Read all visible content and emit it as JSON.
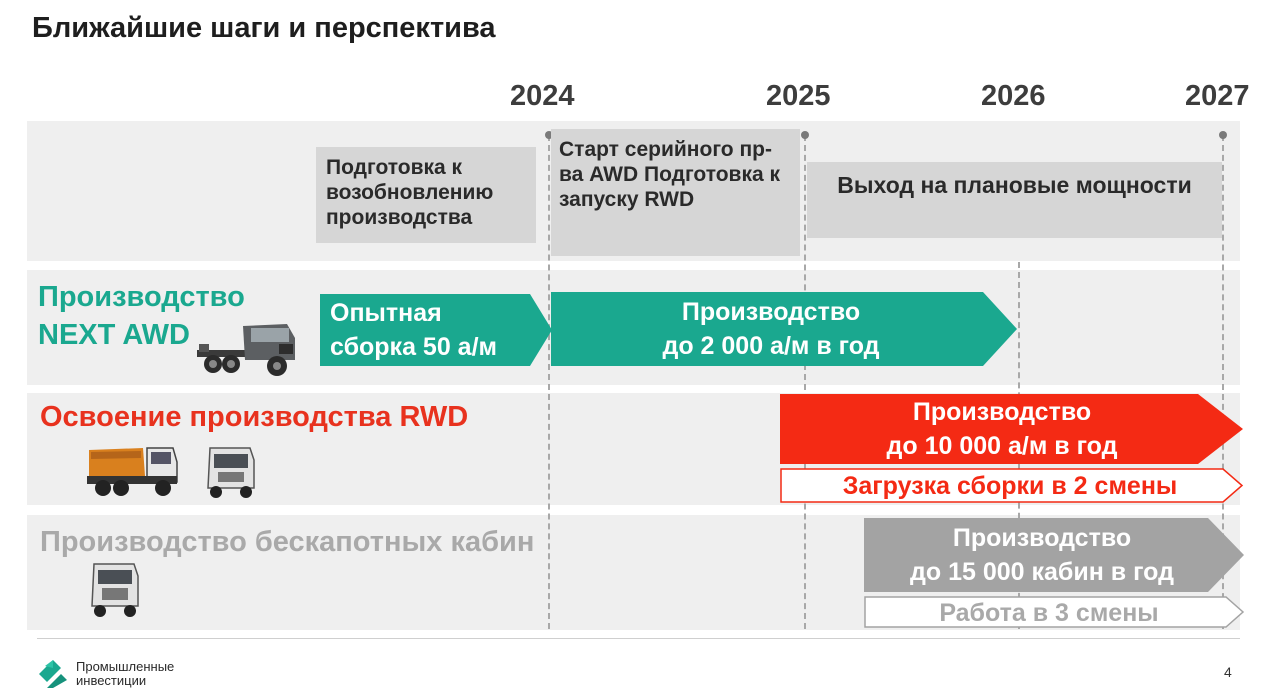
{
  "slide": {
    "title": "Ближайшие шаги и перспектива",
    "page_number": "4"
  },
  "years": [
    "2024",
    "2025",
    "2026",
    "2027"
  ],
  "prep": {
    "box1": "Подготовка к возобновлению производства",
    "box2": "Старт серийного пр-ва AWD Подготовка к запуску RWD",
    "box3": "Выход на плановые мощности"
  },
  "awd": {
    "label_line1": "Производство",
    "label_line2": "NEXT AWD",
    "label_color": "#1aa88f",
    "arrow1_line1": "Опытная",
    "arrow1_line2": "сборка 50 а/м",
    "arrow2_line1": "Производство",
    "arrow2_line2": "до 2 000 а/м в год",
    "arrow_color": "#1aa88f",
    "truck_icon": "truck-chassis-icon"
  },
  "rwd": {
    "label": "Освоение производства RWD",
    "label_color": "#e8321e",
    "arrow_line1": "Производство",
    "arrow_line2": "до 10 000 а/м в год",
    "arrow_color": "#f42a14",
    "outline_text": "Загрузка сборки в 2 смены",
    "truck_icons": [
      "dump-truck-icon",
      "tractor-truck-icon"
    ]
  },
  "cabins": {
    "label": "Производство бескапотных кабин",
    "label_color": "#a9a9a9",
    "arrow_line1": "Производство",
    "arrow_line2": "до 15 000 кабин в год",
    "arrow_color": "#a3a3a3",
    "outline_text": "Работа в 3 смены",
    "truck_icon": "cab-icon"
  },
  "logo": {
    "line1": "Промышленные",
    "line2": "инвестиции",
    "color": "#1aa88f"
  }
}
